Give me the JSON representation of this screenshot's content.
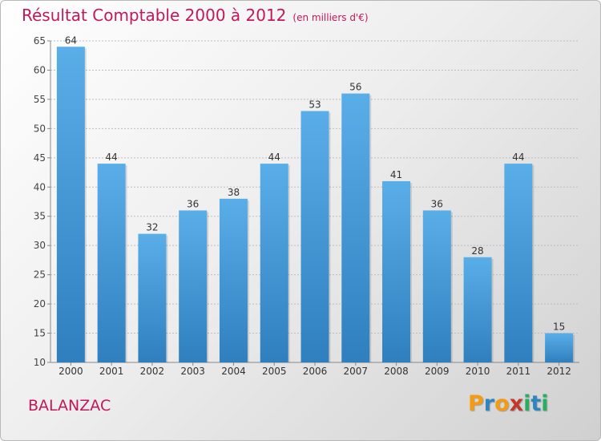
{
  "chart_data": {
    "type": "bar",
    "title": "Résultat Comptable 2000 à 2012",
    "subtitle": "(en milliers d'€)",
    "categories": [
      "2000",
      "2001",
      "2002",
      "2003",
      "2004",
      "2005",
      "2006",
      "2007",
      "2008",
      "2009",
      "2010",
      "2011",
      "2012"
    ],
    "values": [
      64,
      44,
      32,
      36,
      38,
      44,
      53,
      56,
      41,
      36,
      28,
      44,
      15
    ],
    "ylim": [
      10,
      65
    ],
    "yticks": [
      10,
      15,
      20,
      25,
      30,
      35,
      40,
      45,
      50,
      55,
      60,
      65
    ],
    "xlabel": "",
    "ylabel": "",
    "grid": true,
    "bar_color": "#4a9fe0"
  },
  "footer": {
    "commune": "BALANZAC",
    "brand": [
      "P",
      "r",
      "o",
      "x",
      "i",
      "t",
      "i"
    ],
    "brand_colors": [
      "#f39c12",
      "#2e86c1",
      "#f39c12",
      "#c0392b",
      "#27ae60",
      "#2e86c1",
      "#27ae60"
    ]
  }
}
